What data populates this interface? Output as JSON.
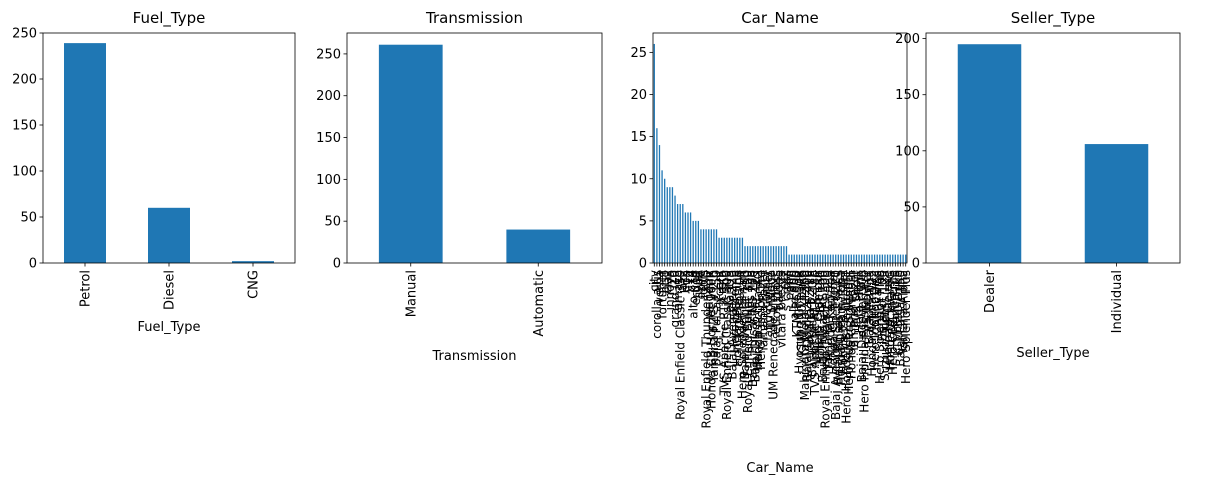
{
  "chart_data": [
    {
      "type": "bar",
      "title": "Fuel_Type",
      "xlabel": "Fuel_Type",
      "ylabel": "",
      "categories": [
        "Petrol",
        "Diesel",
        "CNG"
      ],
      "values": [
        239,
        60,
        2
      ],
      "ylim": [
        0,
        250
      ],
      "yticks": [
        0,
        50,
        100,
        150,
        200,
        250
      ],
      "color": "#1f77b4",
      "grid": false
    },
    {
      "type": "bar",
      "title": "Transmission",
      "xlabel": "Transmission",
      "ylabel": "",
      "categories": [
        "Manual",
        "Automatic"
      ],
      "values": [
        261,
        40
      ],
      "ylim": [
        0,
        275
      ],
      "yticks": [
        0,
        50,
        100,
        150,
        200,
        250
      ],
      "color": "#1f77b4",
      "grid": false
    },
    {
      "type": "bar",
      "title": "Car_Name",
      "xlabel": "Car_Name",
      "ylabel": "",
      "categories": [
        "city",
        "corolla altis",
        "verna",
        "fortuner",
        "brio",
        "ciaz",
        "innova",
        "i20",
        "grand i10",
        "amaze",
        "Royal Enfield Classic 350",
        "jazz",
        "eon",
        "i10",
        "sx4",
        "alto k10",
        "ertiga",
        "swift",
        "dzire",
        "ignis",
        "Royal Enfield Thunder 350",
        "wagon r",
        "Honda CB Hornet 160R",
        "Yamaha FZ S V 2.0",
        "Bajaj Pulsar 150",
        "xcent",
        "creta",
        "TVS Apache RTR 160",
        "Royal Enfield Classic 500",
        "elantra",
        "Bajaj Avenger 220",
        "Hero Extreme",
        "Honda CB Shine",
        "KTM RC200",
        "Hero Splender iSmart",
        "Bajaj Avenger 150",
        "Royal Enfield Bullet 350",
        "etios liva",
        "Bajaj Pulsar NS 200",
        "Bajaj Discover 125",
        "Honda Activa 4G",
        "Hero Passion Pro",
        "Yamaha Fazer",
        "camry",
        "land cruiser",
        "TVS Wego",
        "UM Renegade Mojave",
        "etios cross",
        "baleno",
        "vitara brezza",
        "ritz",
        "s cross",
        "omni",
        "800",
        "alto 800",
        "KTM RC390",
        "Hyosung GT250R",
        "KTM 390 Duke",
        "Mahindra Mojo XT300",
        "Bajaj Dominar 400",
        "Yamaha FZ 16",
        "Bajaj Pulsar 220 F",
        "TVS Apache RTR 180",
        "Hero Glamour",
        "Honda CBR 150",
        "Bajaj Pulsar RS200",
        "Royal Enfield Thunder 500",
        "Yamaha FZ v 2.0",
        "Honda Karizma",
        "Honda CB Trigger",
        "Bajaj Avenger Street 220",
        "Bajaj Pulsar 135 LS",
        "Honda Dream Yuga",
        "Honda CB twister",
        "Hero Honda CBZ extreme",
        "Hero Super Splendor",
        "Honda CB Unicorn",
        "Yamaha Fazer",
        "TVS Sport",
        "Hero Hunk",
        "Bajaj Discover 100",
        "Hero Honda Passion Pro",
        "TVS Jupyter",
        "Bajaj Platina",
        "Honda Activa 125",
        "Hero Ignitor Disc",
        "Activa 3g",
        "Hero Splendor Plus",
        "Bajaj ct 100",
        "Suzuki Access 125",
        "Hero HF Deluxe",
        "Honda Activa 5G",
        "Hero CBZ Xtreme",
        "Honda Dio",
        "KTM 390 Duke",
        "Bajaj Pulsar 150",
        "Yamaha Alpha",
        "Hero Splender Plus"
      ],
      "values": [
        26,
        16,
        14,
        11,
        10,
        9,
        9,
        9,
        8,
        7,
        7,
        7,
        6,
        6,
        6,
        5,
        5,
        5,
        4,
        4,
        4,
        4,
        4,
        4,
        4,
        3,
        3,
        3,
        3,
        3,
        3,
        3,
        3,
        3,
        3,
        2,
        2,
        2,
        2,
        2,
        2,
        2,
        2,
        2,
        2,
        2,
        2,
        2,
        2,
        2,
        2,
        2,
        1,
        1,
        1,
        1,
        1,
        1,
        1,
        1,
        1,
        1,
        1,
        1,
        1,
        1,
        1,
        1,
        1,
        1,
        1,
        1,
        1,
        1,
        1,
        1,
        1,
        1,
        1,
        1,
        1,
        1,
        1,
        1,
        1,
        1,
        1,
        1,
        1,
        1,
        1,
        1,
        1,
        1,
        1,
        1,
        1,
        1
      ],
      "ylim": [
        0,
        27.3
      ],
      "yticks": [
        0,
        5,
        10,
        15,
        20,
        25
      ],
      "color": "#1f77b4",
      "grid": false
    },
    {
      "type": "bar",
      "title": "Seller_Type",
      "xlabel": "Seller_Type",
      "ylabel": "",
      "categories": [
        "Dealer",
        "Individual"
      ],
      "values": [
        195,
        106
      ],
      "ylim": [
        0,
        205
      ],
      "yticks": [
        0,
        50,
        100,
        150,
        200
      ],
      "color": "#1f77b4",
      "grid": false
    }
  ]
}
